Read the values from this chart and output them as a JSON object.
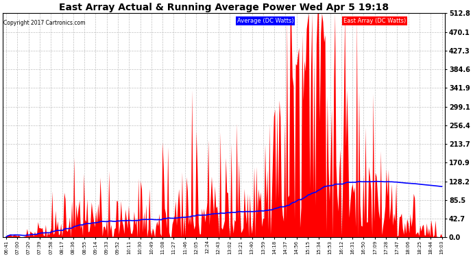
{
  "title": "East Array Actual & Running Average Power Wed Apr 5 19:18",
  "copyright": "Copyright 2017 Cartronics.com",
  "ylabel_right_ticks": [
    0.0,
    42.7,
    85.5,
    128.2,
    170.9,
    213.7,
    256.4,
    299.1,
    341.9,
    384.6,
    427.3,
    470.1,
    512.8
  ],
  "ymax": 512.8,
  "ymin": 0.0,
  "legend_labels": [
    "Average (DC Watts)",
    "East Array (DC Watts)"
  ],
  "legend_colors": [
    "#0000ff",
    "#ff0000"
  ],
  "background_color": "#ffffff",
  "plot_bg_color": "#ffffff",
  "grid_color": "#c0c0c0",
  "bar_color": "#ff0000",
  "line_color": "#0000ff",
  "x_tick_labels": [
    "06:41",
    "07:00",
    "07:20",
    "07:39",
    "07:58",
    "08:17",
    "08:36",
    "08:55",
    "09:14",
    "09:33",
    "09:52",
    "10:11",
    "10:30",
    "10:49",
    "11:08",
    "11:27",
    "11:46",
    "12:05",
    "12:24",
    "12:43",
    "13:02",
    "13:21",
    "13:40",
    "13:59",
    "14:18",
    "14:37",
    "14:56",
    "15:15",
    "15:34",
    "15:53",
    "16:12",
    "16:31",
    "16:50",
    "17:09",
    "17:28",
    "17:47",
    "18:06",
    "18:25",
    "18:44",
    "19:03"
  ],
  "n_ticks": 40,
  "n_points": 400,
  "figsize": [
    6.9,
    3.75
  ],
  "dpi": 100
}
